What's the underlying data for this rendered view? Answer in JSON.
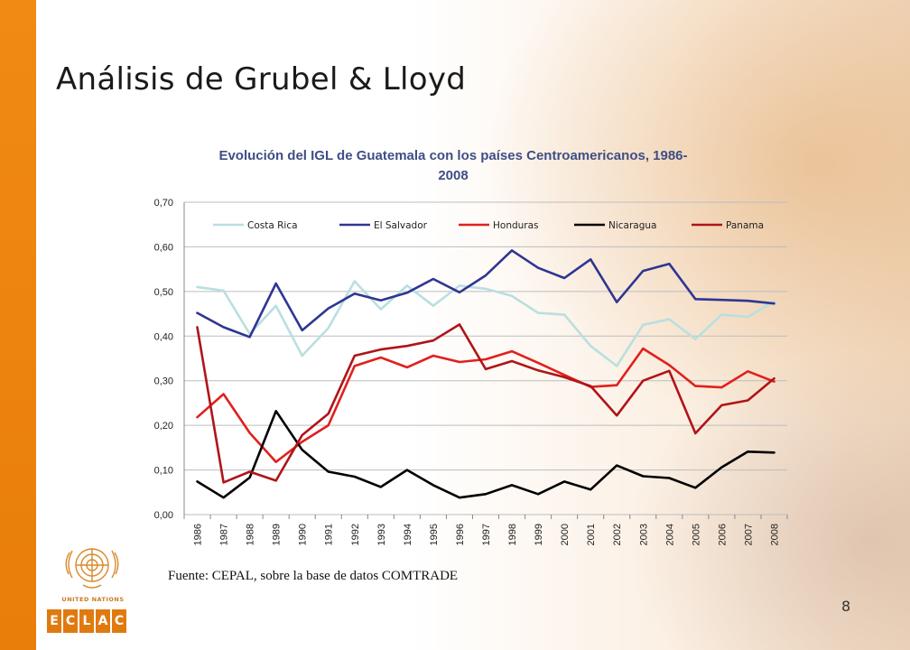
{
  "slide": {
    "title": "Análisis de Grubel & Lloyd",
    "source": "Fuente: CEPAL, sobre la base de datos COMTRADE",
    "page_number": "8",
    "logo_label": "UNITED NATIONS",
    "logo_letters": [
      "E",
      "C",
      "L",
      "A",
      "C"
    ]
  },
  "colors": {
    "accent_bar": "#f08a12",
    "title_chart": "#3f4e86"
  },
  "chart_data": {
    "type": "line",
    "title": "Evolución del IGL de Guatemala con los países Centroamericanos, 1986-2008",
    "title_lines": [
      "Evolución del IGL de Guatemala con los países Centroamericanos, 1986-",
      "2008"
    ],
    "xlabel": "",
    "ylabel": "",
    "ylim": [
      0,
      0.7
    ],
    "yticks": [
      "0,00",
      "0,10",
      "0,20",
      "0,30",
      "0,40",
      "0,50",
      "0,60",
      "0,70"
    ],
    "grid": true,
    "legend_position": "top",
    "x": [
      "1986",
      "1987",
      "1988",
      "1989",
      "1990",
      "1991",
      "1992",
      "1993",
      "1994",
      "1995",
      "1996",
      "1997",
      "1998",
      "1999",
      "2000",
      "2001",
      "2002",
      "2003",
      "2004",
      "2005",
      "2006",
      "2007",
      "2008"
    ],
    "series": [
      {
        "name": "Costa Rica",
        "color": "#b9dfe0",
        "values": [
          0.51,
          0.502,
          0.405,
          0.468,
          0.356,
          0.418,
          0.523,
          0.46,
          0.513,
          0.468,
          0.513,
          0.506,
          0.49,
          0.452,
          0.448,
          0.378,
          0.333,
          0.425,
          0.438,
          0.393,
          0.448,
          0.443,
          0.478
        ]
      },
      {
        "name": "El Salvador",
        "color": "#2e3692",
        "values": [
          0.452,
          0.42,
          0.398,
          0.518,
          0.413,
          0.462,
          0.495,
          0.48,
          0.497,
          0.528,
          0.498,
          0.536,
          0.592,
          0.553,
          0.53,
          0.572,
          0.476,
          0.546,
          0.562,
          0.483,
          0.481,
          0.479,
          0.473
        ]
      },
      {
        "name": "Honduras",
        "color": "#e0201d",
        "values": [
          0.218,
          0.27,
          0.183,
          0.118,
          0.163,
          0.2,
          0.333,
          0.352,
          0.33,
          0.356,
          0.342,
          0.348,
          0.366,
          0.34,
          0.313,
          0.286,
          0.29,
          0.372,
          0.335,
          0.288,
          0.285,
          0.321,
          0.298
        ]
      },
      {
        "name": "Nicaragua",
        "color": "#000000",
        "values": [
          0.074,
          0.038,
          0.083,
          0.232,
          0.145,
          0.096,
          0.085,
          0.062,
          0.1,
          0.066,
          0.038,
          0.046,
          0.066,
          0.046,
          0.074,
          0.056,
          0.11,
          0.086,
          0.082,
          0.06,
          0.106,
          0.141,
          0.139
        ]
      },
      {
        "name": "Panama",
        "color": "#b01418",
        "values": [
          0.42,
          0.072,
          0.096,
          0.076,
          0.178,
          0.226,
          0.356,
          0.37,
          0.378,
          0.39,
          0.426,
          0.326,
          0.344,
          0.323,
          0.308,
          0.288,
          0.222,
          0.3,
          0.322,
          0.182,
          0.245,
          0.256,
          0.305
        ]
      }
    ]
  }
}
